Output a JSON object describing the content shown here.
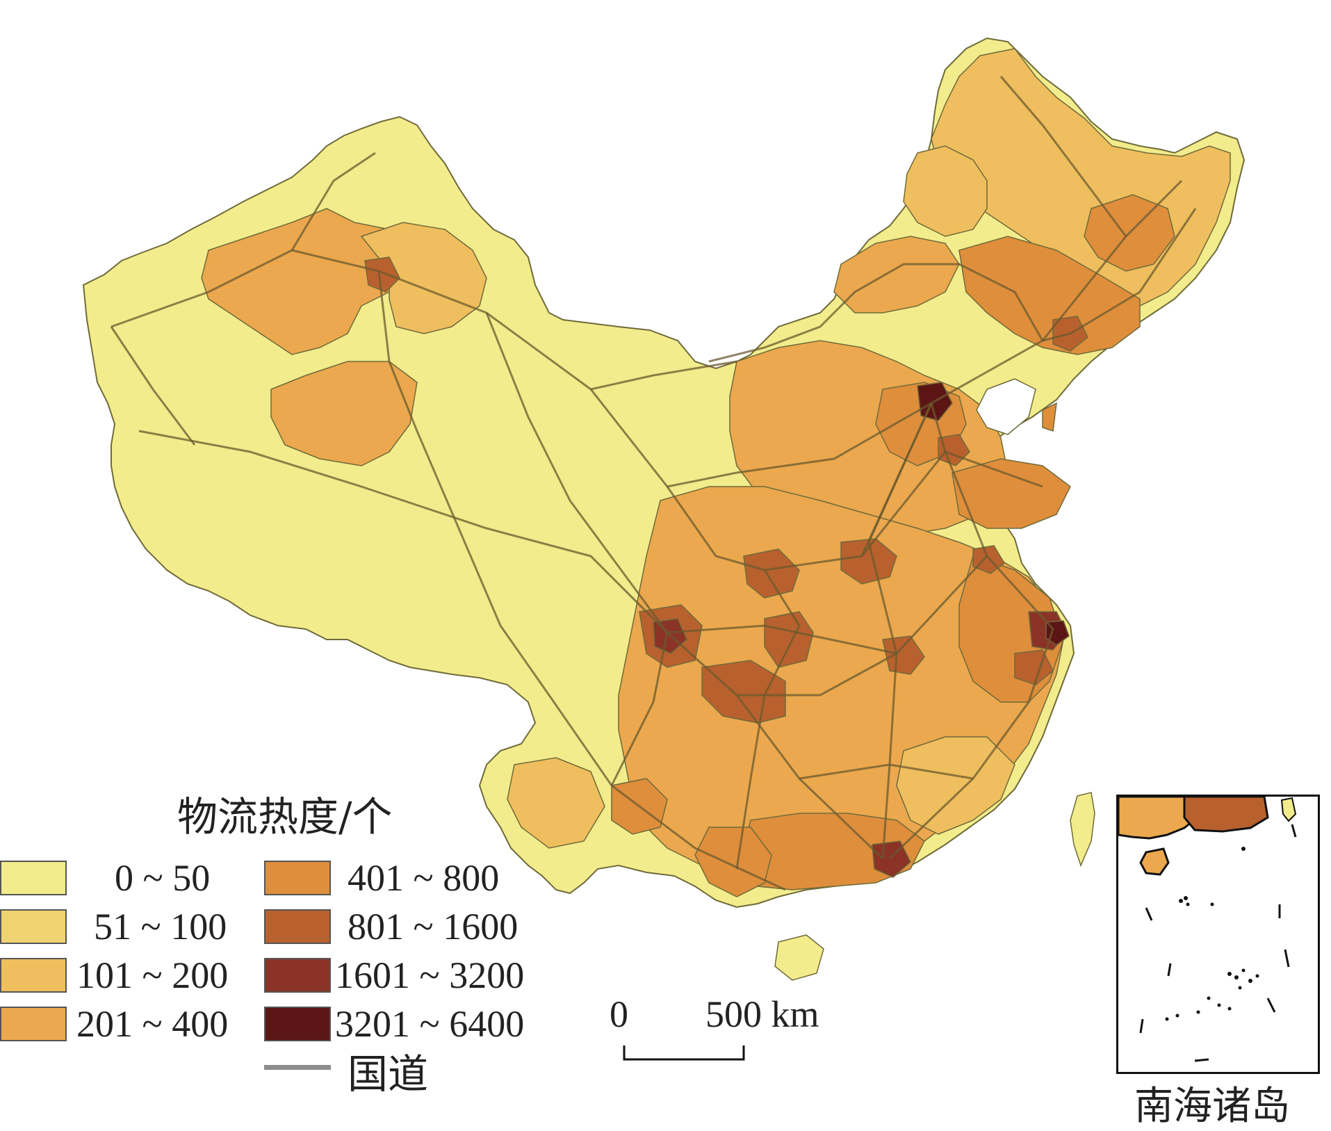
{
  "map": {
    "legend_title": "物流热度/个",
    "legend": [
      {
        "label": "0 ~ 50",
        "color": "#f2ec8c"
      },
      {
        "label": "51 ~ 100",
        "color": "#f0d473"
      },
      {
        "label": "101 ~ 200",
        "color": "#efbe5e"
      },
      {
        "label": "201 ~ 400",
        "color": "#eba84e"
      },
      {
        "label": "401 ~ 800",
        "color": "#df8e3c"
      },
      {
        "label": "801 ~ 1600",
        "color": "#b8612e"
      },
      {
        "label": "1601 ~ 3200",
        "color": "#8a3326"
      },
      {
        "label": "3201 ~ 6400",
        "color": "#5c1515"
      }
    ],
    "road_label": "国道",
    "road_color": "#8c8c8c",
    "scale": {
      "start": "0",
      "end": "500 km"
    },
    "inset_caption": "南海诸岛"
  }
}
